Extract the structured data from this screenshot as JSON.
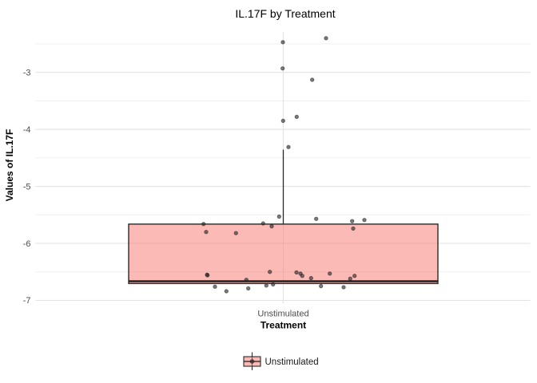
{
  "chart_data": {
    "type": "boxplot",
    "title": "IL.17F by Treatment",
    "xlabel": "Treatment",
    "ylabel": "Values of IL.17F",
    "categories": [
      "Unstimulated"
    ],
    "yticks": [
      -3,
      -4,
      -5,
      -6,
      -7
    ],
    "yticks_minor": [
      -2.5,
      -3.5,
      -4.5,
      -5.5,
      -6.5
    ],
    "ylim": [
      -7.05,
      -2.29
    ],
    "grid": true,
    "legend": {
      "position": "bottom",
      "entries": [
        "Unstimulated"
      ]
    },
    "box": {
      "category": "Unstimulated",
      "q1": -6.705,
      "median": -6.665,
      "q3": -5.662,
      "whisker_low": -6.705,
      "whisker_high": -4.355
    },
    "points_jitter_value": [
      [
        -0.5,
        -2.47
      ],
      [
        53.5,
        -2.4
      ],
      [
        -0.8,
        -2.93
      ],
      [
        36.2,
        -3.13
      ],
      [
        16.8,
        -3.78
      ],
      [
        -0.2,
        -3.85
      ],
      [
        6.5,
        -4.31
      ],
      [
        -5.2,
        -5.53
      ],
      [
        41.2,
        -5.57
      ],
      [
        86.2,
        -5.61
      ],
      [
        101.5,
        -5.59
      ],
      [
        -25.2,
        -5.65
      ],
      [
        -99.8,
        -5.66
      ],
      [
        -14.5,
        -5.7
      ],
      [
        -96.5,
        -5.8
      ],
      [
        -59.2,
        -5.82
      ],
      [
        87.5,
        -5.74
      ],
      [
        -95.4,
        -6.55
      ],
      [
        -94.8,
        -6.56
      ],
      [
        -16.8,
        -6.5
      ],
      [
        16.5,
        -6.51
      ],
      [
        21.5,
        -6.53
      ],
      [
        23.8,
        -6.57
      ],
      [
        34.8,
        -6.61
      ],
      [
        -46.2,
        -6.64
      ],
      [
        58.2,
        -6.53
      ],
      [
        83.8,
        -6.62
      ],
      [
        89.2,
        -6.57
      ],
      [
        -21.2,
        -6.74
      ],
      [
        -12.8,
        -6.72
      ],
      [
        -43.8,
        -6.79
      ],
      [
        -85.5,
        -6.76
      ],
      [
        -71.2,
        -6.84
      ],
      [
        47.2,
        -6.75
      ],
      [
        75.5,
        -6.77
      ]
    ],
    "colors": {
      "box_fill": "#F8766D",
      "box_fill_alpha": 0.5,
      "box_stroke": "#2a2a2a",
      "median": "#1f1f1f",
      "whisker": "#2a2a2a",
      "point_fill": "rgba(40,40,40,0.62)",
      "point_stroke": "rgba(25,25,25,0.55)",
      "grid_major": "#e3e3e3",
      "grid_minor": "#efefef",
      "tick_label": "#4d4d4d"
    }
  }
}
